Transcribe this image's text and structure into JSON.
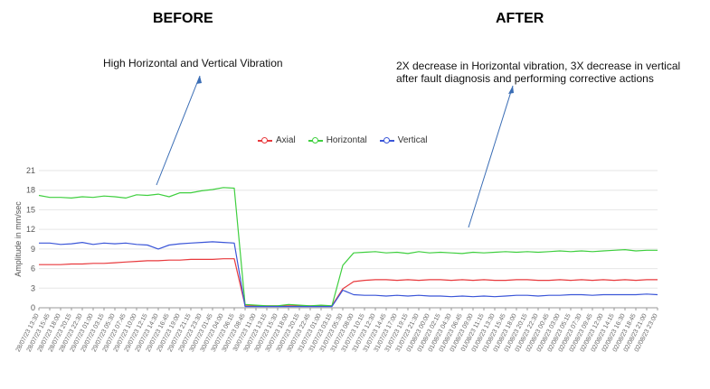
{
  "labels": {
    "before": "BEFORE",
    "after": "AFTER",
    "before_note": "High Horizontal and Vertical Vibration",
    "after_note_line1": "2X decrease in Horizontal vibration, 3X decrease in vertical",
    "after_note_line2": "after fault diagnosis and performing corrective actions"
  },
  "colors": {
    "axial": "#e8393c",
    "horizontal": "#3fcf3f",
    "vertical": "#3b56d8",
    "annotation": "#3a6db5"
  },
  "chart_data": {
    "type": "line",
    "title": "",
    "xlabel": "",
    "ylabel": "Amplitude in mm/sec",
    "ylim": [
      0,
      21
    ],
    "yticks": [
      0,
      3,
      6,
      9,
      12,
      15,
      18,
      21
    ],
    "grid": true,
    "legend": "top-center",
    "x_tick_labels": [
      "28/07/23 13:30",
      "28/07/23 15:45",
      "28/07/23 18:00",
      "28/07/23 20:15",
      "28/07/23 22:30",
      "29/07/23 01:00",
      "29/07/23 03:15",
      "29/07/23 05:30",
      "29/07/23 07:45",
      "29/07/23 10:00",
      "29/07/23 12:15",
      "29/07/23 14:30",
      "29/07/23 16:45",
      "29/07/23 19:00",
      "29/07/23 21:15",
      "29/07/23 23:30",
      "30/07/23 01:45",
      "30/07/23 04:00",
      "30/07/23 06:15",
      "30/07/23 08:45",
      "30/07/23 11:00",
      "30/07/23 13:15",
      "30/07/23 15:30",
      "30/07/23 18:00",
      "30/07/23 20:15",
      "30/07/23 22:45",
      "31/07/23 01:00",
      "31/07/23 03:15",
      "31/07/23 05:30",
      "31/07/23 08:00",
      "31/07/23 10:15",
      "31/07/23 12:30",
      "31/07/23 14:45",
      "31/07/23 17:00",
      "31/07/23 19:15",
      "31/07/23 21:30",
      "01/08/23 00:00",
      "01/08/23 02:15",
      "01/08/23 04:30",
      "01/08/23 06:45",
      "01/08/23 09:00",
      "01/08/23 11:15",
      "01/08/23 13:30",
      "01/08/23 15:45",
      "01/08/23 18:00",
      "01/08/23 20:15",
      "01/08/23 22:30",
      "02/08/23 00:45",
      "02/08/23 03:00",
      "02/08/23 05:15",
      "02/08/23 07:30",
      "02/08/23 09:45",
      "02/08/23 12:00",
      "02/08/23 14:15",
      "02/08/23 16:30",
      "02/08/23 18:45",
      "02/08/23 21:00",
      "02/08/23 23:00"
    ],
    "series": [
      {
        "name": "Axial",
        "values": [
          6.6,
          6.6,
          6.6,
          6.7,
          6.7,
          6.8,
          6.8,
          6.9,
          7.0,
          7.1,
          7.2,
          7.2,
          7.3,
          7.3,
          7.4,
          7.4,
          7.4,
          7.5,
          7.5,
          0.3,
          0.3,
          0.3,
          0.3,
          0.3,
          0.3,
          0.3,
          0.3,
          0.3,
          2.9,
          4.0,
          4.2,
          4.3,
          4.3,
          4.2,
          4.3,
          4.2,
          4.3,
          4.3,
          4.2,
          4.3,
          4.2,
          4.3,
          4.2,
          4.2,
          4.3,
          4.3,
          4.2,
          4.2,
          4.3,
          4.2,
          4.3,
          4.2,
          4.3,
          4.2,
          4.3,
          4.2,
          4.3,
          4.3
        ]
      },
      {
        "name": "Horizontal",
        "values": [
          17.2,
          16.9,
          16.9,
          16.8,
          17.0,
          16.9,
          17.1,
          17.0,
          16.8,
          17.3,
          17.2,
          17.4,
          17.0,
          17.6,
          17.6,
          17.9,
          18.1,
          18.4,
          18.3,
          0.5,
          0.4,
          0.3,
          0.3,
          0.5,
          0.4,
          0.3,
          0.4,
          0.3,
          6.5,
          8.4,
          8.5,
          8.6,
          8.4,
          8.5,
          8.3,
          8.6,
          8.4,
          8.5,
          8.4,
          8.3,
          8.5,
          8.4,
          8.5,
          8.6,
          8.5,
          8.6,
          8.5,
          8.6,
          8.7,
          8.6,
          8.7,
          8.6,
          8.7,
          8.8,
          8.9,
          8.7,
          8.8,
          8.8
        ]
      },
      {
        "name": "Vertical",
        "values": [
          9.9,
          9.9,
          9.7,
          9.8,
          10.0,
          9.7,
          9.9,
          9.8,
          9.9,
          9.7,
          9.6,
          9.0,
          9.6,
          9.8,
          9.9,
          10.0,
          10.1,
          10.0,
          9.9,
          0.2,
          0.2,
          0.2,
          0.2,
          0.2,
          0.2,
          0.2,
          0.2,
          0.2,
          2.7,
          2.0,
          1.9,
          1.9,
          1.8,
          1.9,
          1.8,
          1.9,
          1.8,
          1.8,
          1.7,
          1.8,
          1.7,
          1.8,
          1.7,
          1.8,
          1.9,
          1.9,
          1.8,
          1.9,
          1.9,
          2.0,
          2.0,
          1.9,
          2.0,
          2.0,
          2.0,
          2.0,
          2.1,
          2.0
        ]
      }
    ]
  }
}
